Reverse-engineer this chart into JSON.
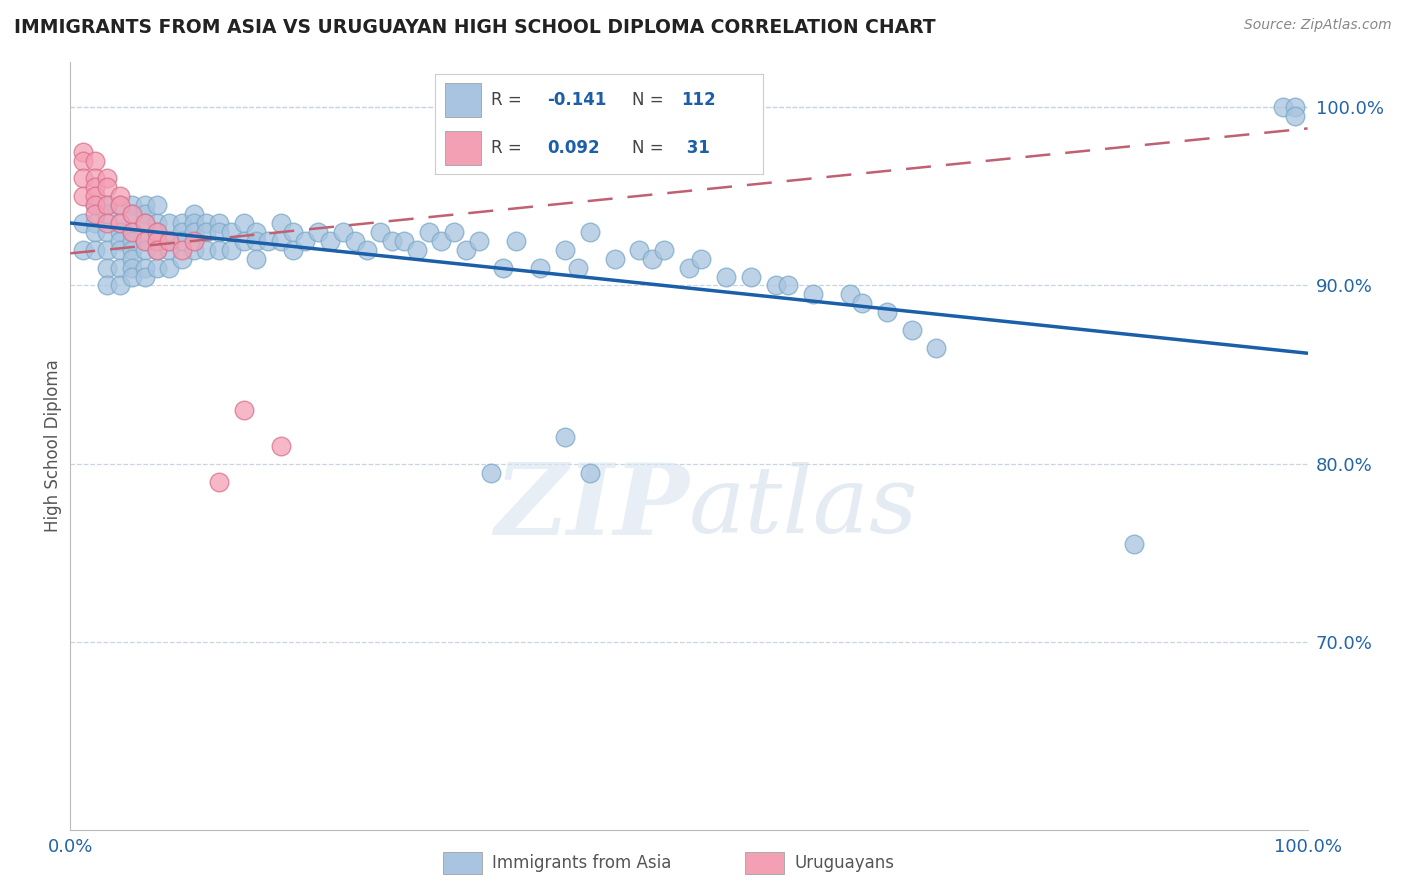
{
  "title": "IMMIGRANTS FROM ASIA VS URUGUAYAN HIGH SCHOOL DIPLOMA CORRELATION CHART",
  "source": "Source: ZipAtlas.com",
  "ylabel": "High School Diploma",
  "legend_label_blue": "Immigrants from Asia",
  "legend_label_pink": "Uruguayans",
  "xlim": [
    0.0,
    1.0
  ],
  "ylim": [
    0.595,
    1.025
  ],
  "yticks": [
    0.7,
    0.8,
    0.9,
    1.0
  ],
  "ytick_labels": [
    "70.0%",
    "80.0%",
    "90.0%",
    "100.0%"
  ],
  "blue_color": "#a8c4e0",
  "blue_edge_color": "#7aaac8",
  "blue_line_color": "#1a5fa8",
  "pink_color": "#f4a0b4",
  "pink_edge_color": "#d87090",
  "pink_line_color": "#c06070",
  "grid_color": "#c8d4e4",
  "watermark": "ZIPatlas",
  "blue_x": [
    0.01,
    0.01,
    0.02,
    0.02,
    0.02,
    0.02,
    0.03,
    0.03,
    0.03,
    0.03,
    0.03,
    0.03,
    0.04,
    0.04,
    0.04,
    0.04,
    0.04,
    0.04,
    0.04,
    0.05,
    0.05,
    0.05,
    0.05,
    0.05,
    0.05,
    0.05,
    0.05,
    0.06,
    0.06,
    0.06,
    0.06,
    0.06,
    0.06,
    0.06,
    0.07,
    0.07,
    0.07,
    0.07,
    0.07,
    0.08,
    0.08,
    0.08,
    0.08,
    0.09,
    0.09,
    0.09,
    0.09,
    0.1,
    0.1,
    0.1,
    0.1,
    0.11,
    0.11,
    0.11,
    0.12,
    0.12,
    0.12,
    0.13,
    0.13,
    0.14,
    0.14,
    0.15,
    0.15,
    0.15,
    0.16,
    0.17,
    0.17,
    0.18,
    0.18,
    0.19,
    0.2,
    0.21,
    0.22,
    0.23,
    0.24,
    0.25,
    0.26,
    0.27,
    0.28,
    0.29,
    0.3,
    0.31,
    0.32,
    0.33,
    0.35,
    0.36,
    0.38,
    0.4,
    0.41,
    0.42,
    0.44,
    0.46,
    0.47,
    0.48,
    0.5,
    0.51,
    0.53,
    0.55,
    0.57,
    0.58,
    0.6,
    0.63,
    0.64,
    0.66,
    0.68,
    0.7,
    0.86,
    0.98,
    0.99,
    0.99,
    0.42,
    0.34,
    0.4
  ],
  "blue_y": [
    0.935,
    0.92,
    0.945,
    0.935,
    0.93,
    0.92,
    0.945,
    0.94,
    0.93,
    0.92,
    0.91,
    0.9,
    0.945,
    0.935,
    0.93,
    0.925,
    0.92,
    0.91,
    0.9,
    0.945,
    0.94,
    0.93,
    0.925,
    0.92,
    0.915,
    0.91,
    0.905,
    0.945,
    0.94,
    0.935,
    0.925,
    0.92,
    0.91,
    0.905,
    0.945,
    0.935,
    0.93,
    0.92,
    0.91,
    0.935,
    0.925,
    0.92,
    0.91,
    0.935,
    0.93,
    0.925,
    0.915,
    0.94,
    0.935,
    0.93,
    0.92,
    0.935,
    0.93,
    0.92,
    0.935,
    0.93,
    0.92,
    0.93,
    0.92,
    0.935,
    0.925,
    0.93,
    0.925,
    0.915,
    0.925,
    0.935,
    0.925,
    0.93,
    0.92,
    0.925,
    0.93,
    0.925,
    0.93,
    0.925,
    0.92,
    0.93,
    0.925,
    0.925,
    0.92,
    0.93,
    0.925,
    0.93,
    0.92,
    0.925,
    0.91,
    0.925,
    0.91,
    0.92,
    0.91,
    0.93,
    0.915,
    0.92,
    0.915,
    0.92,
    0.91,
    0.915,
    0.905,
    0.905,
    0.9,
    0.9,
    0.895,
    0.895,
    0.89,
    0.885,
    0.875,
    0.865,
    0.755,
    1.0,
    1.0,
    0.995,
    0.795,
    0.795,
    0.815
  ],
  "pink_x": [
    0.01,
    0.01,
    0.01,
    0.01,
    0.02,
    0.02,
    0.02,
    0.02,
    0.02,
    0.02,
    0.03,
    0.03,
    0.03,
    0.03,
    0.04,
    0.04,
    0.04,
    0.05,
    0.05,
    0.06,
    0.06,
    0.07,
    0.07,
    0.07,
    0.08,
    0.09,
    0.1,
    0.12,
    0.14,
    0.17,
    0.55
  ],
  "pink_y": [
    0.975,
    0.97,
    0.96,
    0.95,
    0.97,
    0.96,
    0.955,
    0.95,
    0.945,
    0.94,
    0.96,
    0.955,
    0.945,
    0.935,
    0.95,
    0.945,
    0.935,
    0.94,
    0.93,
    0.935,
    0.925,
    0.93,
    0.925,
    0.92,
    0.925,
    0.92,
    0.925,
    0.79,
    0.83,
    0.81,
    0.99
  ],
  "blue_line_x0": 0.0,
  "blue_line_y0": 0.935,
  "blue_line_x1": 1.0,
  "blue_line_y1": 0.862,
  "pink_line_x0": 0.0,
  "pink_line_y0": 0.918,
  "pink_line_x1": 1.0,
  "pink_line_y1": 0.988
}
